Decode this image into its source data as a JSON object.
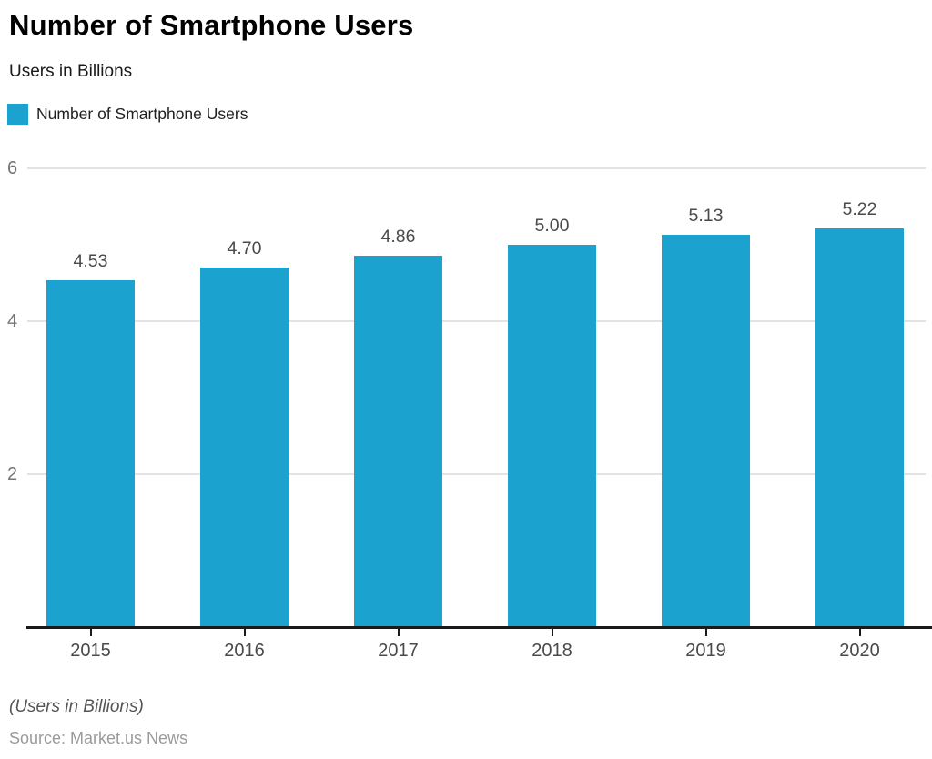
{
  "header": {
    "title": "Number of Smartphone Users",
    "subtitle": "Users in Billions"
  },
  "legend": {
    "label": "Number of Smartphone Users",
    "color": "#1BA2CE"
  },
  "chart_data": {
    "type": "bar",
    "categories": [
      "2015",
      "2016",
      "2017",
      "2018",
      "2019",
      "2020"
    ],
    "values": [
      4.53,
      4.7,
      4.86,
      5.0,
      5.13,
      5.22
    ],
    "value_labels": [
      "4.53",
      "4.70",
      "4.86",
      "5.00",
      "5.13",
      "5.22"
    ],
    "title": "Number of Smartphone Users",
    "xlabel": "",
    "ylabel": "Users in Billions",
    "ylim": [
      0,
      6
    ],
    "yticks": [
      2,
      4,
      6
    ],
    "grid": true,
    "legend_position": "top-left",
    "bar_color": "#1BA2CE"
  },
  "footer": {
    "note": "(Users in Billions)",
    "source": "Source: Market.us News"
  }
}
